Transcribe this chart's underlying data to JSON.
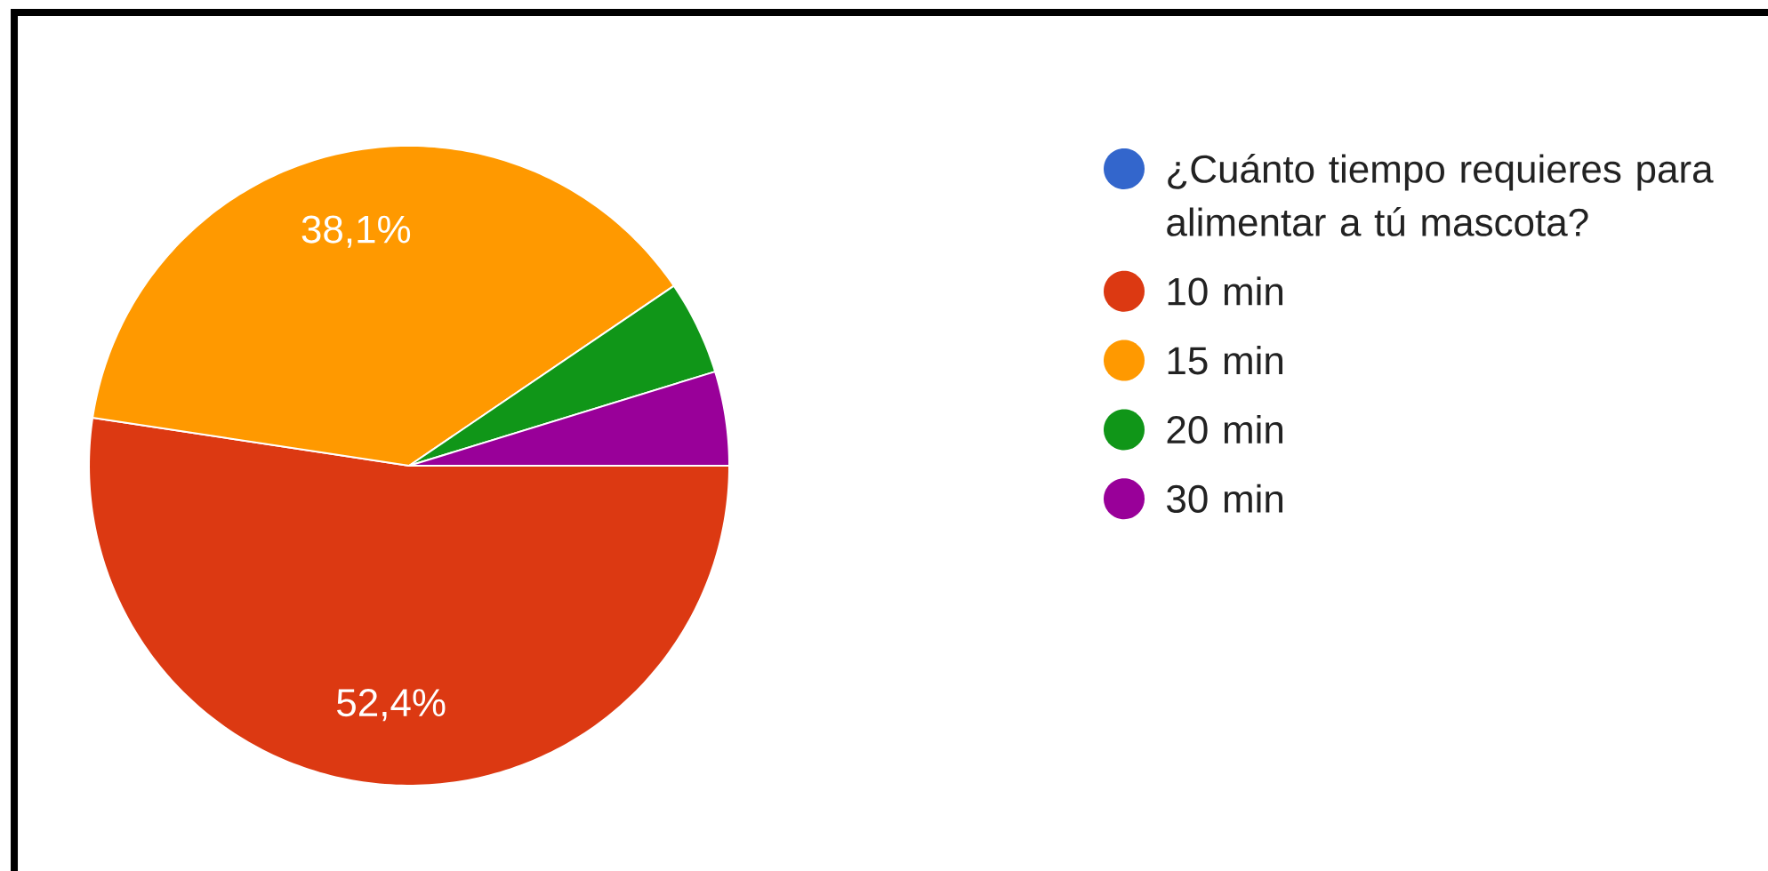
{
  "chart_data": {
    "type": "pie",
    "categories": [
      "¿Cuánto tiempo requieres para alimentar a tú mascota?",
      "10 min",
      "15 min",
      "20 min",
      "30 min"
    ],
    "values": [
      0,
      52.4,
      38.1,
      4.75,
      4.75
    ],
    "colors": [
      "#3366cc",
      "#dc3912",
      "#ff9900",
      "#109618",
      "#990099"
    ],
    "value_labels": [
      null,
      "52,4%",
      "38,1%",
      null,
      null
    ],
    "legend": "right"
  }
}
